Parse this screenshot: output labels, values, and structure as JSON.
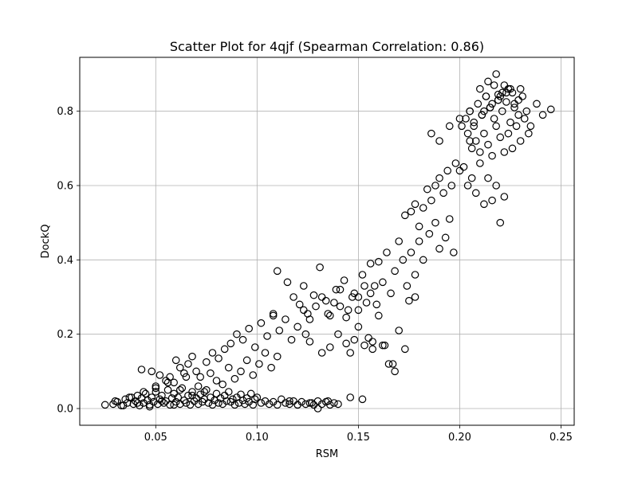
{
  "chart_data": {
    "type": "scatter",
    "title": "Scatter Plot for 4qjf (Spearman Correlation: 0.86)",
    "xlabel": "RSM",
    "ylabel": "DockQ",
    "xlim": [
      0.0125,
      0.2565
    ],
    "ylim": [
      -0.045,
      0.945
    ],
    "x_ticks": [
      0.05,
      0.1,
      0.15,
      0.2,
      0.25
    ],
    "x_tick_labels": [
      "0.05",
      "0.10",
      "0.15",
      "0.20",
      "0.25"
    ],
    "y_ticks": [
      0.0,
      0.2,
      0.4,
      0.6,
      0.8
    ],
    "y_tick_labels": [
      "0.0",
      "0.2",
      "0.4",
      "0.6",
      "0.8"
    ],
    "grid": true,
    "marker": "open-circle",
    "marker_color": "#000000",
    "series": [
      {
        "x": [
          0.025,
          0.029,
          0.031,
          0.033,
          0.035,
          0.036,
          0.038,
          0.039,
          0.04,
          0.041,
          0.042,
          0.043,
          0.044,
          0.045,
          0.046,
          0.047,
          0.048,
          0.049,
          0.05,
          0.051,
          0.052,
          0.053,
          0.054,
          0.055,
          0.056,
          0.057,
          0.058,
          0.059,
          0.06,
          0.061,
          0.062,
          0.063,
          0.064,
          0.065,
          0.066,
          0.067,
          0.068,
          0.069,
          0.07,
          0.071,
          0.072,
          0.073,
          0.074,
          0.075,
          0.076,
          0.077,
          0.078,
          0.079,
          0.08,
          0.081,
          0.082,
          0.083,
          0.084,
          0.085,
          0.086,
          0.087,
          0.088,
          0.089,
          0.09,
          0.091,
          0.092,
          0.093,
          0.094,
          0.095,
          0.096,
          0.097,
          0.098,
          0.099,
          0.1,
          0.102,
          0.104,
          0.106,
          0.108,
          0.11,
          0.112,
          0.114,
          0.116,
          0.118,
          0.12,
          0.122,
          0.124,
          0.126,
          0.128,
          0.13,
          0.132,
          0.134,
          0.136,
          0.138,
          0.14,
          0.03,
          0.034,
          0.037,
          0.041,
          0.044,
          0.047,
          0.05,
          0.053,
          0.056,
          0.059,
          0.062,
          0.065,
          0.068,
          0.071,
          0.074,
          0.077,
          0.08,
          0.083,
          0.086,
          0.089,
          0.092,
          0.095,
          0.098,
          0.101,
          0.104,
          0.107,
          0.11,
          0.043,
          0.048,
          0.05,
          0.052,
          0.055,
          0.057,
          0.059,
          0.06,
          0.062,
          0.064,
          0.066,
          0.068,
          0.07,
          0.072,
          0.075,
          0.078,
          0.081,
          0.084,
          0.087,
          0.09,
          0.093,
          0.096,
          0.099,
          0.102,
          0.105,
          0.108,
          0.111,
          0.114,
          0.117,
          0.12,
          0.123,
          0.126,
          0.129,
          0.132,
          0.135,
          0.138,
          0.141,
          0.144,
          0.147,
          0.15,
          0.153,
          0.156,
          0.159,
          0.11,
          0.115,
          0.118,
          0.121,
          0.123,
          0.125,
          0.128,
          0.131,
          0.134,
          0.136,
          0.139,
          0.141,
          0.143,
          0.145,
          0.148,
          0.15,
          0.152,
          0.154,
          0.156,
          0.158,
          0.16,
          0.162,
          0.164,
          0.166,
          0.168,
          0.17,
          0.172,
          0.174,
          0.176,
          0.178,
          0.108,
          0.124,
          0.126,
          0.132,
          0.136,
          0.14,
          0.144,
          0.146,
          0.148,
          0.15,
          0.153,
          0.155,
          0.157,
          0.16,
          0.162,
          0.165,
          0.168,
          0.17,
          0.173,
          0.175,
          0.178,
          0.18,
          0.182,
          0.185,
          0.188,
          0.19,
          0.193,
          0.195,
          0.197,
          0.173,
          0.176,
          0.178,
          0.18,
          0.182,
          0.184,
          0.186,
          0.188,
          0.19,
          0.192,
          0.194,
          0.196,
          0.198,
          0.2,
          0.202,
          0.204,
          0.206,
          0.208,
          0.21,
          0.212,
          0.214,
          0.216,
          0.218,
          0.22,
          0.222,
          0.186,
          0.19,
          0.195,
          0.2,
          0.205,
          0.203,
          0.205,
          0.207,
          0.209,
          0.211,
          0.213,
          0.215,
          0.217,
          0.219,
          0.221,
          0.223,
          0.225,
          0.227,
          0.229,
          0.231,
          0.233,
          0.235,
          0.238,
          0.241,
          0.245,
          0.201,
          0.204,
          0.206,
          0.208,
          0.21,
          0.212,
          0.214,
          0.216,
          0.218,
          0.22,
          0.222,
          0.224,
          0.226,
          0.228,
          0.23,
          0.232,
          0.234,
          0.21,
          0.213,
          0.217,
          0.221,
          0.225,
          0.229,
          0.214,
          0.219,
          0.223,
          0.227,
          0.212,
          0.216,
          0.22,
          0.224,
          0.207,
          0.211,
          0.215,
          0.219,
          0.218,
          0.222,
          0.226,
          0.23,
          0.205,
          0.146,
          0.152,
          0.157,
          0.163,
          0.167,
          0.13,
          0.127,
          0.135,
          0.12,
          0.116
        ],
        "y": [
          0.01,
          0.012,
          0.018,
          0.008,
          0.025,
          0.015,
          0.03,
          0.012,
          0.02,
          0.035,
          0.008,
          0.028,
          0.015,
          0.04,
          0.022,
          0.01,
          0.03,
          0.018,
          0.045,
          0.012,
          0.025,
          0.035,
          0.015,
          0.02,
          0.05,
          0.01,
          0.028,
          0.04,
          0.018,
          0.03,
          0.012,
          0.055,
          0.022,
          0.015,
          0.035,
          0.01,
          0.045,
          0.02,
          0.028,
          0.012,
          0.038,
          0.018,
          0.025,
          0.05,
          0.015,
          0.03,
          0.01,
          0.022,
          0.04,
          0.015,
          0.028,
          0.012,
          0.035,
          0.02,
          0.045,
          0.018,
          0.025,
          0.01,
          0.03,
          0.015,
          0.038,
          0.022,
          0.012,
          0.028,
          0.018,
          0.04,
          0.01,
          0.025,
          0.03,
          0.015,
          0.02,
          0.012,
          0.018,
          0.01,
          0.025,
          0.015,
          0.012,
          0.02,
          0.01,
          0.018,
          0.012,
          0.015,
          0.01,
          0.02,
          0.012,
          0.018,
          0.01,
          0.015,
          0.012,
          0.02,
          0.008,
          0.03,
          0.015,
          0.045,
          0.005,
          0.06,
          0.02,
          0.07,
          0.01,
          0.05,
          0.085,
          0.035,
          0.06,
          0.045,
          0.095,
          0.075,
          0.065,
          0.11,
          0.08,
          0.1,
          0.13,
          0.09,
          0.12,
          0.15,
          0.11,
          0.14,
          0.105,
          0.1,
          0.055,
          0.09,
          0.075,
          0.085,
          0.07,
          0.13,
          0.11,
          0.095,
          0.12,
          0.14,
          0.1,
          0.085,
          0.125,
          0.15,
          0.135,
          0.16,
          0.175,
          0.2,
          0.185,
          0.215,
          0.165,
          0.23,
          0.195,
          0.25,
          0.21,
          0.24,
          0.185,
          0.22,
          0.265,
          0.24,
          0.275,
          0.3,
          0.255,
          0.285,
          0.32,
          0.245,
          0.3,
          0.265,
          0.33,
          0.31,
          0.28,
          0.37,
          0.34,
          0.3,
          0.28,
          0.33,
          0.255,
          0.305,
          0.38,
          0.29,
          0.25,
          0.32,
          0.275,
          0.345,
          0.265,
          0.31,
          0.3,
          0.36,
          0.285,
          0.39,
          0.33,
          0.395,
          0.34,
          0.42,
          0.31,
          0.37,
          0.45,
          0.4,
          0.33,
          0.42,
          0.36,
          0.255,
          0.2,
          0.18,
          0.15,
          0.165,
          0.2,
          0.175,
          0.15,
          0.185,
          0.22,
          0.17,
          0.19,
          0.16,
          0.25,
          0.17,
          0.12,
          0.1,
          0.21,
          0.16,
          0.29,
          0.3,
          0.45,
          0.4,
          0.47,
          0.5,
          0.43,
          0.46,
          0.51,
          0.42,
          0.52,
          0.53,
          0.55,
          0.49,
          0.54,
          0.59,
          0.56,
          0.6,
          0.62,
          0.58,
          0.64,
          0.6,
          0.66,
          0.64,
          0.65,
          0.6,
          0.62,
          0.58,
          0.66,
          0.55,
          0.62,
          0.56,
          0.6,
          0.5,
          0.57,
          0.74,
          0.72,
          0.76,
          0.78,
          0.72,
          0.78,
          0.8,
          0.76,
          0.82,
          0.79,
          0.84,
          0.81,
          0.78,
          0.83,
          0.8,
          0.85,
          0.77,
          0.82,
          0.79,
          0.84,
          0.8,
          0.76,
          0.82,
          0.79,
          0.805,
          0.76,
          0.74,
          0.7,
          0.72,
          0.69,
          0.74,
          0.71,
          0.68,
          0.76,
          0.73,
          0.69,
          0.74,
          0.7,
          0.76,
          0.72,
          0.78,
          0.74,
          0.86,
          0.84,
          0.87,
          0.85,
          0.86,
          0.83,
          0.88,
          0.845,
          0.825,
          0.81,
          0.8,
          0.82,
          0.84,
          0.86,
          0.77,
          0.79,
          0.81,
          0.83,
          0.9,
          0.87,
          0.85,
          0.86,
          0.8,
          0.03,
          0.025,
          0.18,
          0.17,
          0.12,
          0.0,
          0.015,
          0.02,
          0.01,
          0.02
        ]
      }
    ]
  }
}
